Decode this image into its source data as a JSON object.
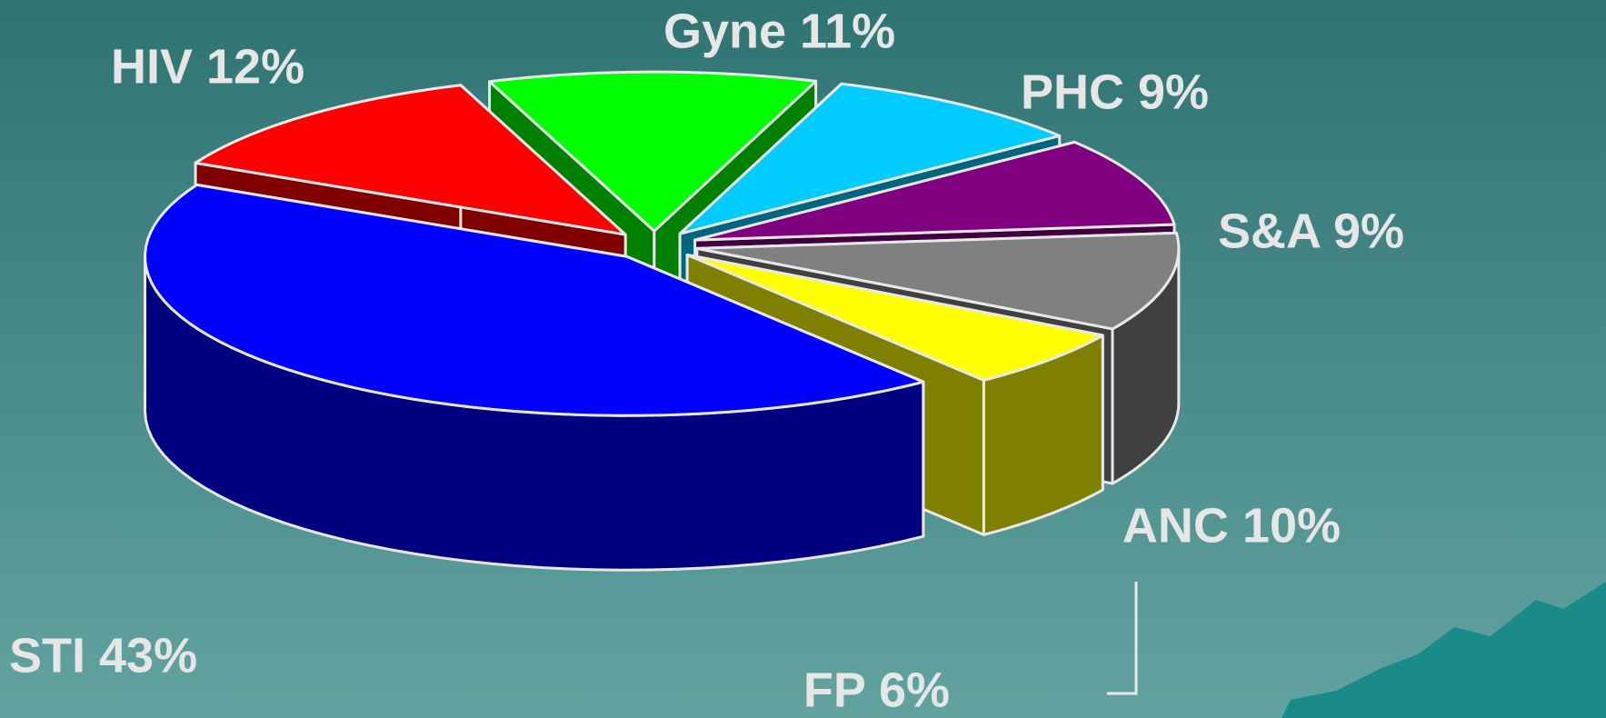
{
  "chart_data": {
    "type": "pie3d",
    "values": [
      11,
      9,
      9,
      10,
      6,
      43,
      12
    ],
    "value_labels": [
      "Gyne 11%",
      "PHC 9%",
      "S&A 9%",
      "ANC 10%",
      "FP 6%",
      "STI 43%",
      "HIV 12%"
    ],
    "colors": [
      "#00ff00",
      "#00ccff",
      "#800080",
      "#808080",
      "#ffff00",
      "#0000ff",
      "#ff0000"
    ]
  }
}
